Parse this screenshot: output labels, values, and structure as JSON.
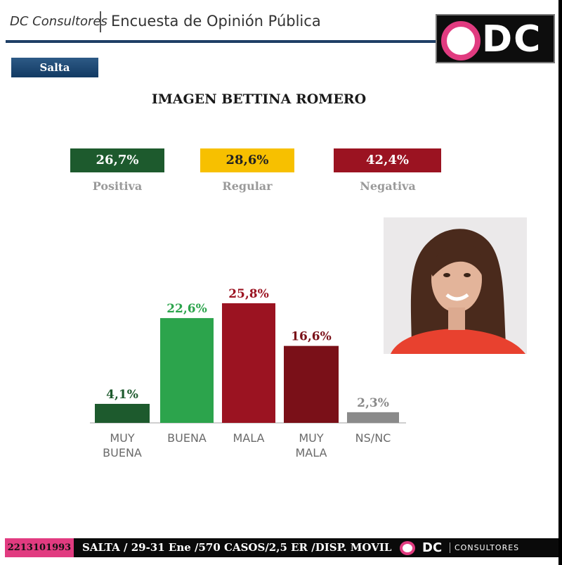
{
  "header": {
    "brand": "DC Consultores",
    "title": "Encuesta de Opinión Pública",
    "logo_text": "DC"
  },
  "region": "Salta",
  "summary": [
    {
      "label": "Positiva",
      "value": "26,7%",
      "color": "#1d5a2d",
      "text_color": "#ffffff"
    },
    {
      "label": "Regular",
      "value": "28,6%",
      "color": "#f7c000",
      "text_color": "#222222"
    },
    {
      "label": "Negativa",
      "value": "42,4%",
      "color": "#9b1321",
      "text_color": "#ffffff"
    }
  ],
  "chart_data": {
    "type": "bar",
    "title": "IMAGEN BETTINA ROMERO",
    "categories": [
      [
        "MUY",
        "BUENA"
      ],
      [
        "BUENA"
      ],
      [
        "MALA"
      ],
      [
        "MUY",
        "MALA"
      ],
      [
        "NS/NC"
      ]
    ],
    "values": [
      4.1,
      22.6,
      25.8,
      16.6,
      2.3
    ],
    "value_labels": [
      "4,1%",
      "22,6%",
      "25,8%",
      "16,6%",
      "2,3%"
    ],
    "colors": [
      "#1d5a2d",
      "#2ca44c",
      "#9b1321",
      "#7a1018",
      "#8a8a8a"
    ],
    "label_colors": [
      "#1d5a2d",
      "#2ca44c",
      "#9b1321",
      "#7a1018",
      "#8a8a8a"
    ],
    "xlabel": "",
    "ylabel": "",
    "grid": false
  },
  "footer": {
    "phone": "2213101993",
    "info": "SALTA / 29-31 Ene /570 CASOS/2,5 ER  /DISP. MOVIL",
    "logo_dc": "DC",
    "logo_sub": "CONSULTORES"
  }
}
